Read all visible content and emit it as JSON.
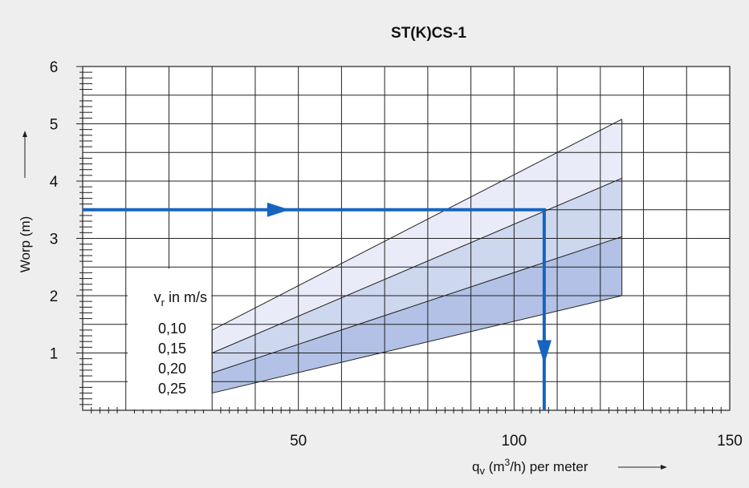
{
  "chart_data": {
    "type": "area",
    "title": "ST(K)CS-1",
    "xlabel": {
      "main": "q",
      "sub": "v",
      "unit_open": " (m",
      "sup": "3",
      "unit_close": "/h)  per meter"
    },
    "ylabel": "Worp  (m)",
    "xlim": [
      0,
      150
    ],
    "ylim": [
      0,
      6
    ],
    "x_ticks": [
      {
        "value": 50,
        "label": "50"
      },
      {
        "value": 100,
        "label": "100"
      },
      {
        "value": 150,
        "label": "150"
      }
    ],
    "y_ticks": [
      {
        "value": 1,
        "label": "1"
      },
      {
        "value": 2,
        "label": "2"
      },
      {
        "value": 3,
        "label": "3"
      },
      {
        "value": 4,
        "label": "4"
      },
      {
        "value": 5,
        "label": "5"
      },
      {
        "value": 6,
        "label": "6"
      }
    ],
    "grid": true,
    "legend": {
      "title_main": "v",
      "title_sub": "r",
      "title_unit": "  in m/s",
      "entries": [
        "0,10",
        "0,15",
        "0,20",
        "0,25"
      ]
    },
    "series": [
      {
        "name": "0,10",
        "x": [
          30,
          125
        ],
        "y": [
          1.4,
          5.08
        ]
      },
      {
        "name": "0,15",
        "x": [
          30,
          125
        ],
        "y": [
          1.0,
          4.05
        ]
      },
      {
        "name": "0,20",
        "x": [
          30,
          125
        ],
        "y": [
          0.65,
          3.03
        ]
      },
      {
        "name": "0,25",
        "x": [
          30,
          125
        ],
        "y": [
          0.3,
          2.0
        ]
      }
    ],
    "band_colors": [
      "#e9ecf8",
      "#cdd7ee",
      "#b2c1e5",
      "#9aaedb"
    ],
    "example_path": {
      "color": "#1565c0",
      "points": [
        [
          0,
          3.5
        ],
        [
          107,
          3.5
        ],
        [
          107,
          0
        ]
      ],
      "arrow_horizontal_at": [
        45,
        3.5
      ],
      "arrow_vertical_at": [
        107,
        1.0
      ]
    }
  }
}
